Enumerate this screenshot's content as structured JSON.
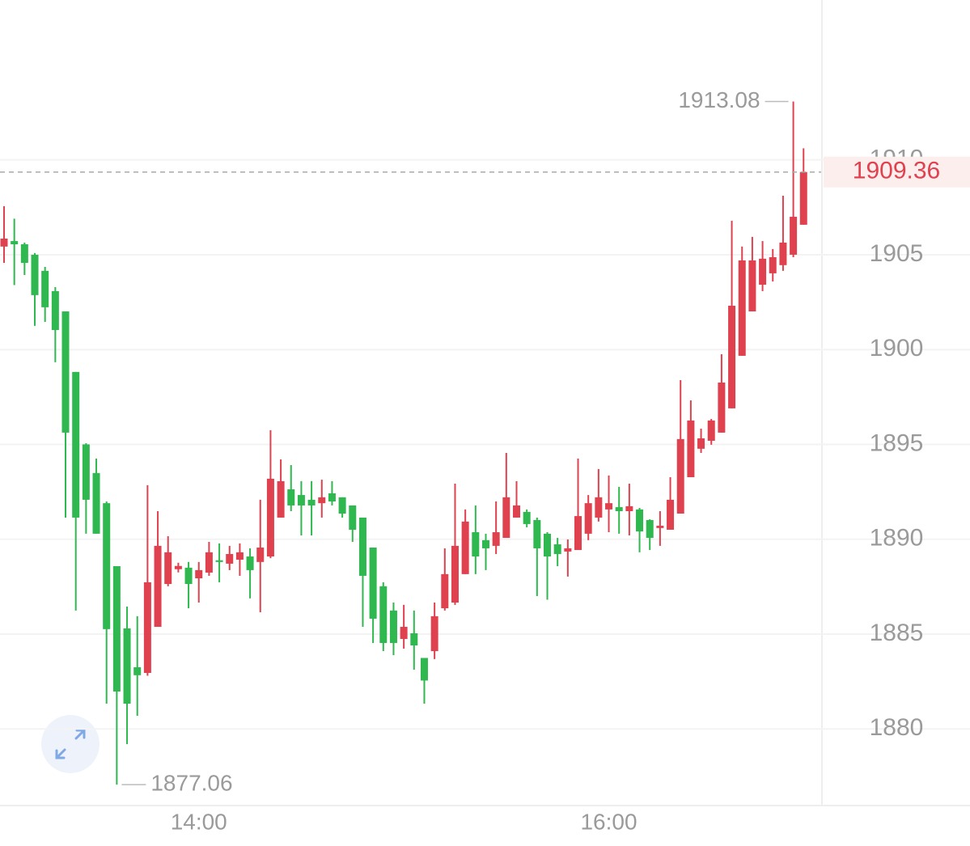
{
  "chart_data": {
    "type": "candlestick",
    "up_color": "#e0414f",
    "down_color": "#2fb84f",
    "categories": [
      null,
      null,
      null,
      null,
      null,
      null,
      null,
      null,
      null,
      null,
      null,
      null,
      null,
      null,
      null,
      null,
      null,
      null,
      null,
      "14:00",
      null,
      null,
      null,
      null,
      null,
      null,
      null,
      null,
      null,
      null,
      null,
      null,
      null,
      null,
      null,
      null,
      null,
      null,
      null,
      null,
      null,
      null,
      null,
      null,
      null,
      null,
      null,
      null,
      null,
      null,
      null,
      null,
      null,
      null,
      null,
      null,
      null,
      null,
      null,
      "16:00",
      null,
      null,
      null,
      null,
      null,
      null,
      null,
      null,
      null,
      null,
      null,
      null,
      null,
      null,
      null,
      null,
      null,
      null,
      null
    ],
    "open": [
      1905.43,
      1905.72,
      1905.55,
      1905.0,
      1904.15,
      1903.08,
      1902.01,
      1898.82,
      1895.0,
      1893.49,
      1891.9,
      1888.58,
      1885.3,
      1883.25,
      1882.95,
      1885.38,
      1887.64,
      1888.42,
      1888.5,
      1887.94,
      1888.24,
      1888.89,
      1888.71,
      1888.92,
      1889.09,
      1888.8,
      1889.09,
      1891.14,
      1892.63,
      1892.33,
      1892.08,
      1891.9,
      1892.42,
      1892.21,
      1891.78,
      1891.14,
      1889.56,
      1887.52,
      1886.24,
      1884.74,
      1885.04,
      1883.74,
      1884.1,
      1886.36,
      1886.66,
      1888.16,
      1890.37,
      1889.95,
      1889.65,
      1890.07,
      1891.14,
      1891.44,
      1891.01,
      1890.29,
      1889.73,
      1889.35,
      1889.43,
      1890.29,
      1891.14,
      1891.57,
      1891.69,
      1891.48,
      1891.57,
      1891.01,
      1890.59,
      1890.5,
      1891.35,
      1893.27,
      1894.77,
      1895.19,
      1895.62,
      1896.9,
      1899.67,
      1902.01,
      1903.42,
      1904.02,
      1904.45,
      1905.0,
      1906.58
    ],
    "high": [
      1907.56,
      1906.9,
      1905.64,
      1905.09,
      1904.36,
      1903.29,
      1902.01,
      1898.82,
      1895.06,
      1894.25,
      1891.99,
      1888.58,
      1886.45,
      1885.94,
      1892.85,
      1891.48,
      1890.16,
      1888.76,
      1888.8,
      1888.8,
      1889.86,
      1889.78,
      1889.65,
      1889.78,
      1889.52,
      1892.08,
      1895.75,
      1894.21,
      1893.91,
      1893.06,
      1893.06,
      1893.14,
      1893.06,
      1892.21,
      1891.78,
      1891.14,
      1889.56,
      1887.73,
      1886.66,
      1886.54,
      1886.24,
      1883.74,
      1886.66,
      1889.52,
      1892.93,
      1891.57,
      1891.78,
      1890.29,
      1891.99,
      1894.55,
      1893.06,
      1891.57,
      1891.14,
      1890.37,
      1890.07,
      1889.99,
      1894.25,
      1892.33,
      1893.7,
      1893.36,
      1892.76,
      1892.93,
      1891.65,
      1891.05,
      1891.48,
      1893.27,
      1898.39,
      1897.32,
      1895.83,
      1896.34,
      1899.75,
      1906.79,
      1905.43,
      1905.94,
      1905.72,
      1905.3,
      1908.11,
      1913.08,
      1910.61
    ],
    "low": [
      1904.57,
      1903.4,
      1903.93,
      1901.25,
      1901.46,
      1899.33,
      1891.14,
      1886.24,
      1890.29,
      1890.29,
      1881.33,
      1877.06,
      1879.2,
      1880.69,
      1882.8,
      1885.38,
      1887.52,
      1888.25,
      1886.36,
      1886.66,
      1888.07,
      1887.73,
      1888.37,
      1888.07,
      1886.88,
      1886.15,
      1889.0,
      1891.14,
      1891.48,
      1890.2,
      1890.2,
      1891.14,
      1891.78,
      1891.14,
      1889.86,
      1885.38,
      1884.53,
      1884.1,
      1883.89,
      1884.23,
      1883.12,
      1881.33,
      1883.68,
      1886.24,
      1886.54,
      1888.16,
      1888.16,
      1888.37,
      1889.22,
      1890.07,
      1891.14,
      1890.63,
      1887.0,
      1886.81,
      1888.58,
      1888.03,
      1889.43,
      1889.95,
      1890.93,
      1890.37,
      1890.29,
      1890.2,
      1889.31,
      1889.43,
      1889.65,
      1890.5,
      1891.35,
      1893.27,
      1894.55,
      1894.98,
      1895.62,
      1896.9,
      1899.67,
      1902.01,
      1903.08,
      1903.59,
      1904.15,
      1904.87,
      1906.58
    ],
    "close": [
      1905.85,
      1905.55,
      1904.57,
      1902.87,
      1902.23,
      1901.03,
      1895.62,
      1891.14,
      1892.08,
      1890.29,
      1885.26,
      1881.97,
      1881.33,
      1882.83,
      1887.73,
      1889.65,
      1889.31,
      1888.59,
      1887.64,
      1888.37,
      1889.31,
      1888.8,
      1889.22,
      1889.31,
      1888.37,
      1889.56,
      1893.19,
      1893.06,
      1891.78,
      1891.78,
      1891.78,
      1892.21,
      1891.99,
      1891.35,
      1890.5,
      1888.07,
      1885.81,
      1884.53,
      1884.53,
      1885.38,
      1884.4,
      1882.55,
      1885.94,
      1888.16,
      1889.65,
      1890.93,
      1889.09,
      1889.52,
      1890.37,
      1892.21,
      1891.78,
      1890.8,
      1889.52,
      1889.09,
      1889.22,
      1889.52,
      1891.22,
      1891.9,
      1892.21,
      1891.9,
      1891.48,
      1891.74,
      1890.41,
      1890.07,
      1890.71,
      1892.08,
      1895.28,
      1896.26,
      1895.32,
      1896.26,
      1898.26,
      1902.31,
      1904.7,
      1904.7,
      1904.79,
      1904.87,
      1905.64,
      1907.0,
      1909.36
    ],
    "ylim": [
      1876.0,
      1918.43
    ],
    "yticks": [
      1880,
      1885,
      1890,
      1895,
      1900,
      1905,
      1910
    ],
    "grid": true
  }
}
